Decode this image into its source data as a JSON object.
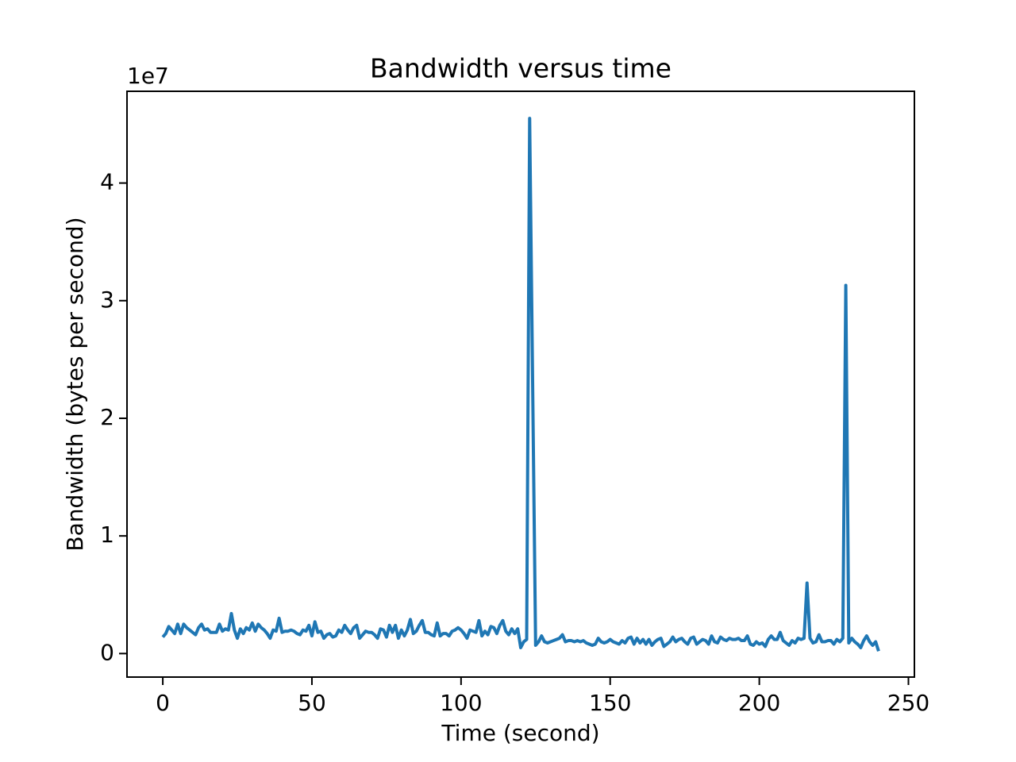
{
  "chart_data": {
    "type": "line",
    "title": "Bandwidth versus time",
    "xlabel": "Time (second)",
    "ylabel": "Bandwidth (bytes per second)",
    "y_offset_label": "1e7",
    "color": "#1f77b4",
    "x": [
      0,
      1,
      2,
      3,
      4,
      5,
      6,
      7,
      8,
      9,
      10,
      11,
      12,
      13,
      14,
      15,
      16,
      17,
      18,
      19,
      20,
      21,
      22,
      23,
      24,
      25,
      26,
      27,
      28,
      29,
      30,
      31,
      32,
      33,
      34,
      35,
      36,
      37,
      38,
      39,
      40,
      41,
      42,
      43,
      44,
      45,
      46,
      47,
      48,
      49,
      50,
      51,
      52,
      53,
      54,
      55,
      56,
      57,
      58,
      59,
      60,
      61,
      62,
      63,
      64,
      65,
      66,
      67,
      68,
      69,
      70,
      71,
      72,
      73,
      74,
      75,
      76,
      77,
      78,
      79,
      80,
      81,
      82,
      83,
      84,
      85,
      86,
      87,
      88,
      89,
      90,
      91,
      92,
      93,
      94,
      95,
      96,
      97,
      98,
      99,
      100,
      101,
      102,
      103,
      104,
      105,
      106,
      107,
      108,
      109,
      110,
      111,
      112,
      113,
      114,
      115,
      116,
      117,
      118,
      119,
      120,
      121,
      122,
      123,
      124,
      125,
      126,
      127,
      128,
      129,
      130,
      131,
      132,
      133,
      134,
      135,
      136,
      137,
      138,
      139,
      140,
      141,
      142,
      143,
      144,
      145,
      146,
      147,
      148,
      149,
      150,
      151,
      152,
      153,
      154,
      155,
      156,
      157,
      158,
      159,
      160,
      161,
      162,
      163,
      164,
      165,
      166,
      167,
      168,
      169,
      170,
      171,
      172,
      173,
      174,
      175,
      176,
      177,
      178,
      179,
      180,
      181,
      182,
      183,
      184,
      185,
      186,
      187,
      188,
      189,
      190,
      191,
      192,
      193,
      194,
      195,
      196,
      197,
      198,
      199,
      200,
      201,
      202,
      203,
      204,
      205,
      206,
      207,
      208,
      209,
      210,
      211,
      212,
      213,
      214,
      215,
      216,
      217,
      218,
      219,
      220,
      221,
      222,
      223,
      224,
      225,
      226,
      227,
      228,
      229,
      230,
      231,
      232,
      233,
      234,
      235,
      236,
      237,
      238,
      239,
      240
    ],
    "values": [
      0.14,
      0.17,
      0.23,
      0.2,
      0.17,
      0.25,
      0.17,
      0.25,
      0.22,
      0.2,
      0.18,
      0.16,
      0.22,
      0.25,
      0.2,
      0.21,
      0.18,
      0.18,
      0.18,
      0.25,
      0.19,
      0.21,
      0.2,
      0.34,
      0.2,
      0.13,
      0.21,
      0.17,
      0.22,
      0.2,
      0.26,
      0.19,
      0.25,
      0.22,
      0.2,
      0.17,
      0.13,
      0.2,
      0.19,
      0.3,
      0.18,
      0.19,
      0.19,
      0.2,
      0.19,
      0.17,
      0.16,
      0.2,
      0.19,
      0.24,
      0.15,
      0.27,
      0.18,
      0.19,
      0.13,
      0.16,
      0.17,
      0.14,
      0.15,
      0.2,
      0.18,
      0.24,
      0.2,
      0.17,
      0.22,
      0.24,
      0.13,
      0.16,
      0.19,
      0.18,
      0.18,
      0.16,
      0.13,
      0.21,
      0.2,
      0.14,
      0.24,
      0.18,
      0.24,
      0.13,
      0.2,
      0.15,
      0.2,
      0.29,
      0.17,
      0.19,
      0.24,
      0.28,
      0.18,
      0.18,
      0.16,
      0.15,
      0.26,
      0.15,
      0.17,
      0.17,
      0.15,
      0.19,
      0.2,
      0.22,
      0.2,
      0.17,
      0.13,
      0.2,
      0.19,
      0.18,
      0.28,
      0.15,
      0.19,
      0.16,
      0.23,
      0.22,
      0.17,
      0.24,
      0.28,
      0.19,
      0.16,
      0.21,
      0.17,
      0.21,
      0.05,
      0.1,
      0.12,
      4.55,
      2.3,
      0.07,
      0.1,
      0.15,
      0.1,
      0.09,
      0.1,
      0.11,
      0.12,
      0.13,
      0.16,
      0.1,
      0.11,
      0.11,
      0.1,
      0.11,
      0.1,
      0.11,
      0.09,
      0.08,
      0.07,
      0.08,
      0.13,
      0.1,
      0.09,
      0.1,
      0.12,
      0.1,
      0.09,
      0.08,
      0.11,
      0.09,
      0.13,
      0.14,
      0.08,
      0.13,
      0.09,
      0.12,
      0.08,
      0.12,
      0.07,
      0.1,
      0.12,
      0.13,
      0.06,
      0.08,
      0.1,
      0.14,
      0.1,
      0.12,
      0.13,
      0.1,
      0.08,
      0.13,
      0.14,
      0.08,
      0.1,
      0.12,
      0.11,
      0.08,
      0.15,
      0.1,
      0.09,
      0.14,
      0.12,
      0.11,
      0.13,
      0.12,
      0.12,
      0.13,
      0.11,
      0.11,
      0.15,
      0.08,
      0.07,
      0.1,
      0.08,
      0.09,
      0.06,
      0.12,
      0.15,
      0.12,
      0.12,
      0.18,
      0.11,
      0.09,
      0.07,
      0.11,
      0.09,
      0.13,
      0.12,
      0.13,
      0.6,
      0.13,
      0.09,
      0.1,
      0.16,
      0.1,
      0.1,
      0.11,
      0.11,
      0.08,
      0.12,
      0.1,
      0.13,
      3.13,
      0.09,
      0.13,
      0.1,
      0.08,
      0.05,
      0.11,
      0.15,
      0.1,
      0.07,
      0.1,
      0.02
    ],
    "xlim": [
      -12,
      252
    ],
    "xticks": [
      0,
      50,
      100,
      150,
      200,
      250
    ],
    "ylim": [
      -0.2,
      4.78
    ],
    "yticks": [
      0,
      1,
      2,
      3,
      4
    ]
  }
}
